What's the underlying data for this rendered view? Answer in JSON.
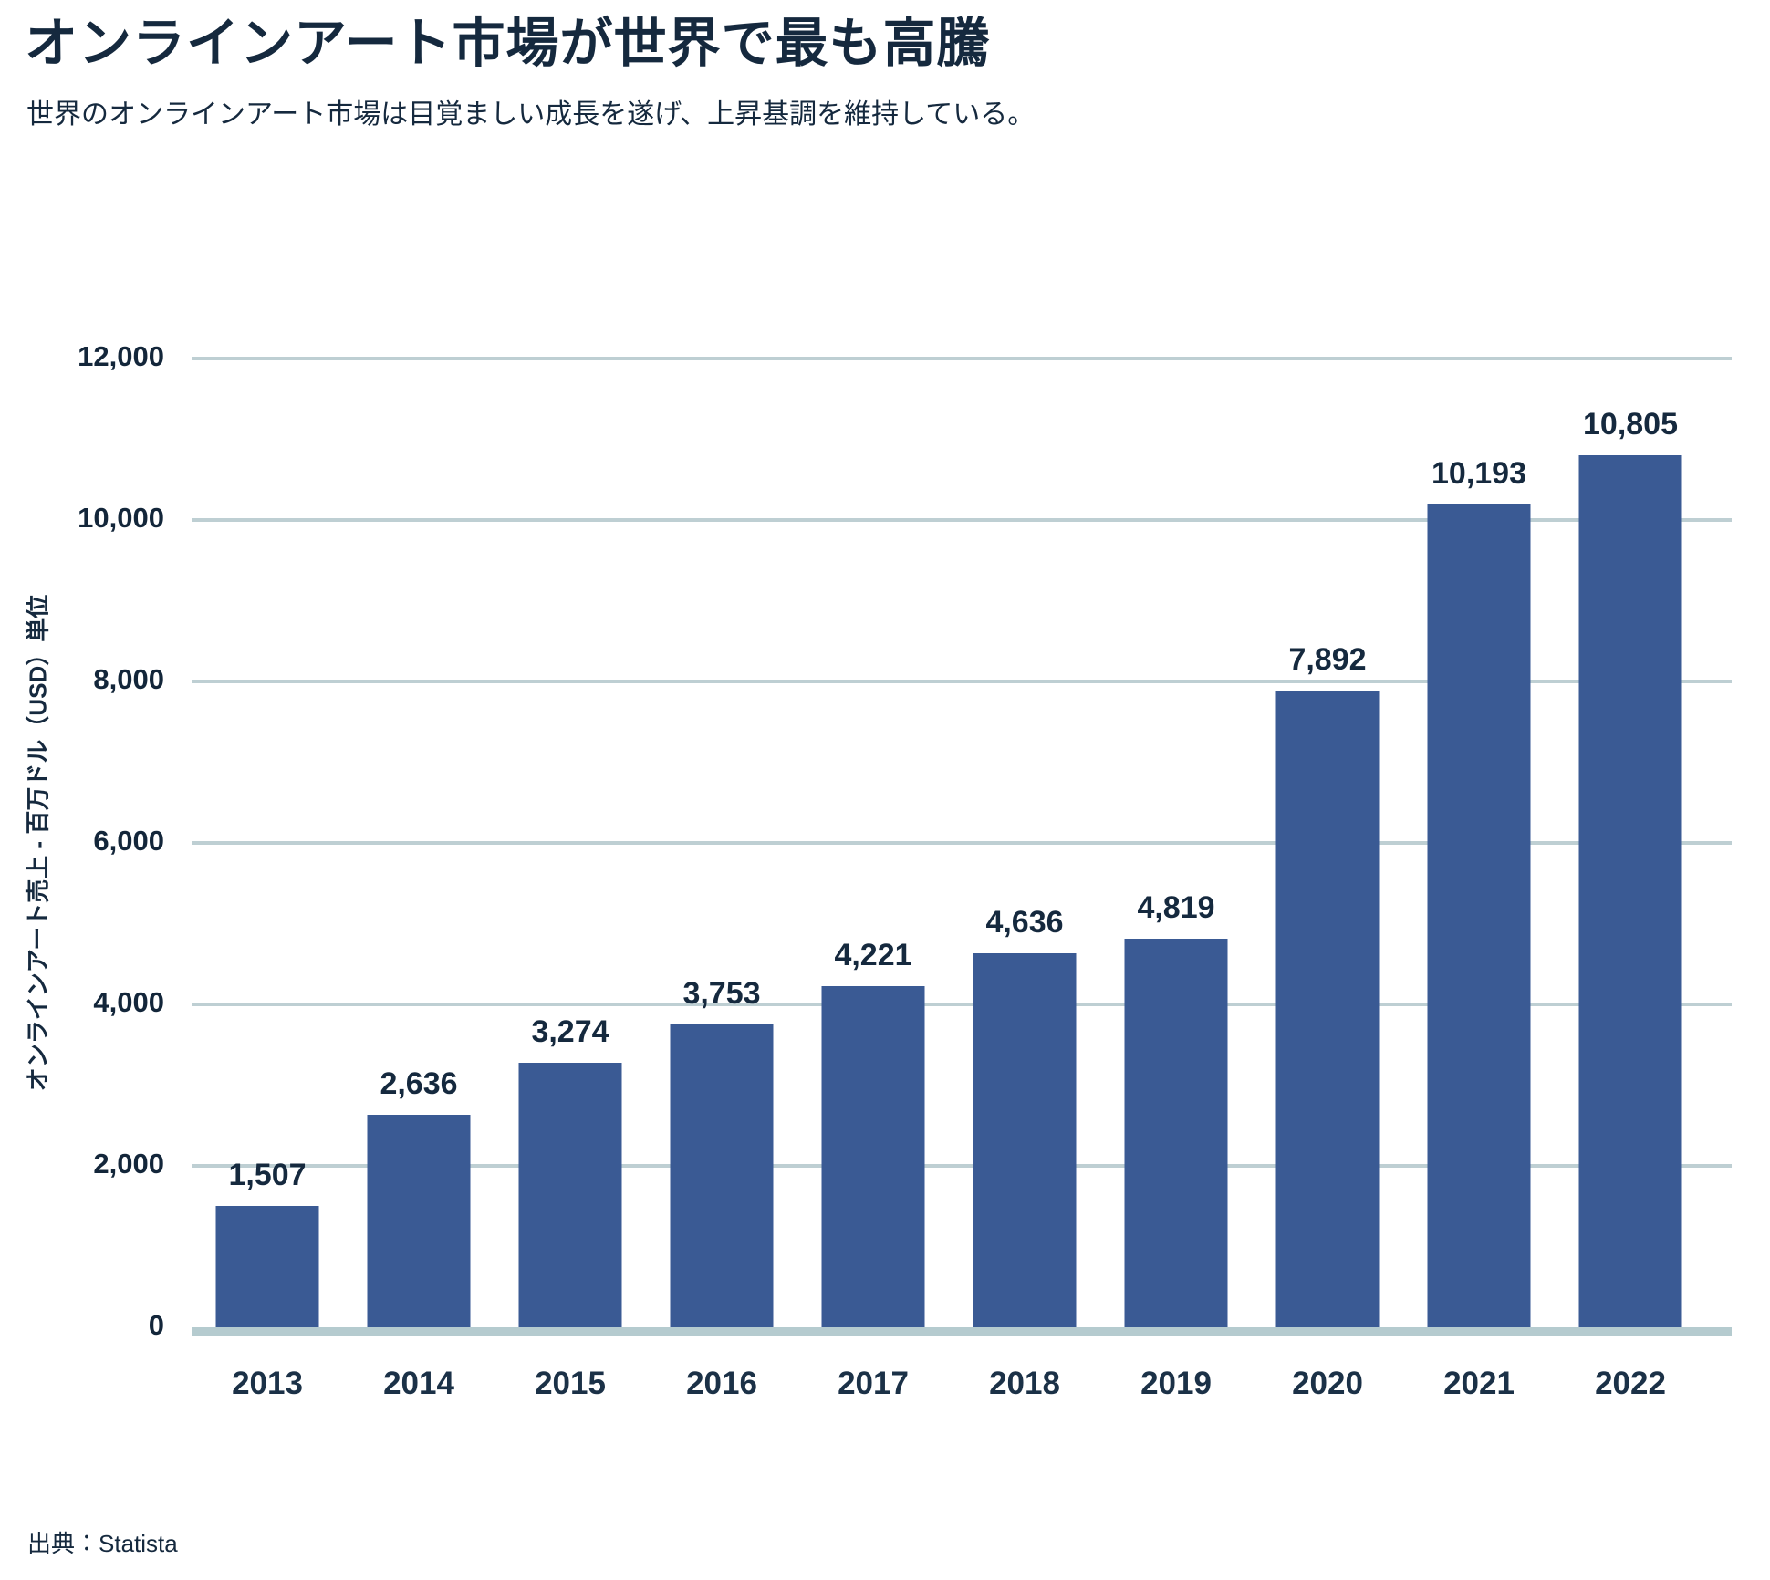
{
  "page": {
    "title": "オンラインアート市場が世界で最も高騰",
    "subtitle": "世界のオンラインアート市場は目覚ましい成長を遂げ、上昇基調を維持している。",
    "source": "出典：Statista"
  },
  "chart_data": {
    "type": "bar",
    "title": "オンラインアート市場が世界で最も高騰",
    "subtitle": "世界のオンラインアート市場は目覚ましい成長を遂げ、上昇基調を維持している。",
    "categories": [
      "2013",
      "2014",
      "2015",
      "2016",
      "2017",
      "2018",
      "2019",
      "2020",
      "2021",
      "2022"
    ],
    "values": [
      1507,
      2636,
      3274,
      3753,
      4221,
      4636,
      4819,
      7892,
      10193,
      10805
    ],
    "value_labels": [
      "1,507",
      "2,636",
      "3,274",
      "3,753",
      "4,221",
      "4,636",
      "4,819",
      "7,892",
      "10,193",
      "10,805"
    ],
    "xlabel": "",
    "ylabel": "オンラインアート売上 - 百万ドル（USD）単位",
    "ylim": [
      0,
      12000
    ],
    "yticks": [
      0,
      2000,
      4000,
      6000,
      8000,
      10000,
      12000
    ],
    "ytick_labels": [
      "0",
      "2,000",
      "4,000",
      "6,000",
      "8,000",
      "10,000",
      "12,000"
    ],
    "grid": true,
    "legend": "none",
    "source": "出典：Statista",
    "colors": {
      "bar": "#3A5A94",
      "gridline": "#BECFD3",
      "baseline": "#B5CBCF",
      "text": "#15293E"
    }
  }
}
